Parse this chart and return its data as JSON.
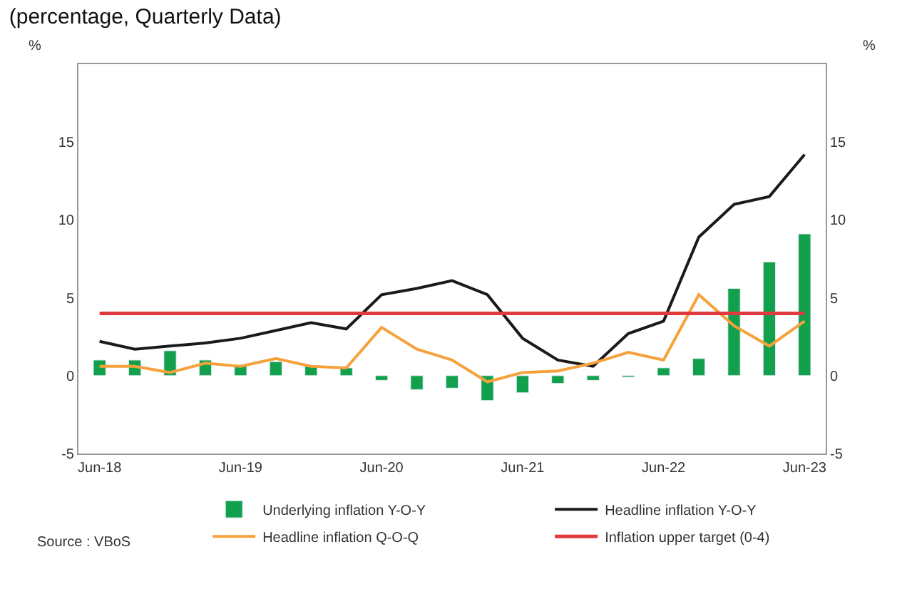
{
  "chart_data": {
    "type": "bar",
    "title": "(percentage, Quarterly Data)",
    "ylabel": "%",
    "y2label": "%",
    "categories": [
      "Jun-18",
      null,
      null,
      null,
      "Jun-19",
      null,
      null,
      null,
      "Jun-20",
      null,
      null,
      null,
      "Jun-21",
      null,
      null,
      null,
      "Jun-22",
      null,
      null,
      null,
      "Jun-23"
    ],
    "series": [
      {
        "name": "Underlying inflation Y-O-Y",
        "color": "#12a04c",
        "values": [
          1.0,
          1.0,
          1.6,
          1.0,
          0.7,
          0.9,
          0.6,
          0.5,
          -0.3,
          -0.9,
          -0.8,
          -1.6,
          -1.1,
          -0.5,
          -0.3,
          -0.1,
          0.5,
          1.1,
          5.6,
          7.3,
          9.1
        ]
      },
      {
        "name": "Headline inflation Y-O-Y",
        "type": "line",
        "color": "#1a1a1a",
        "values": [
          2.2,
          1.7,
          1.9,
          2.1,
          2.4,
          2.9,
          3.4,
          3.0,
          5.2,
          5.6,
          6.1,
          5.2,
          2.4,
          1.0,
          0.6,
          2.7,
          3.5,
          8.9,
          11.0,
          11.5,
          14.2
        ]
      },
      {
        "name": "Headline inflation Q-O-Q",
        "type": "line",
        "color": "#f5a23c",
        "values": [
          0.6,
          0.6,
          0.2,
          0.8,
          0.6,
          1.1,
          0.6,
          0.5,
          3.1,
          1.7,
          1.0,
          -0.4,
          0.2,
          0.3,
          0.8,
          1.5,
          1.0,
          5.2,
          3.2,
          1.9,
          3.5
        ]
      },
      {
        "name": "Inflation upper target (0-4)",
        "type": "line",
        "color": "#e0393e",
        "values": [
          4,
          4,
          4,
          4,
          4,
          4,
          4,
          4,
          4,
          4,
          4,
          4,
          4,
          4,
          4,
          4,
          4,
          4,
          4,
          4,
          4
        ]
      }
    ],
    "ylim": [
      -5,
      20
    ],
    "yticks": [
      -5,
      0,
      5,
      10,
      15
    ],
    "y2lim": [
      -5,
      20
    ],
    "y2ticks": [
      -5,
      0,
      5,
      10,
      15
    ],
    "grid": false,
    "legend": "bottom",
    "marker": "none",
    "line_style": "solid",
    "annotations": [
      "Source : VBoS"
    ]
  }
}
